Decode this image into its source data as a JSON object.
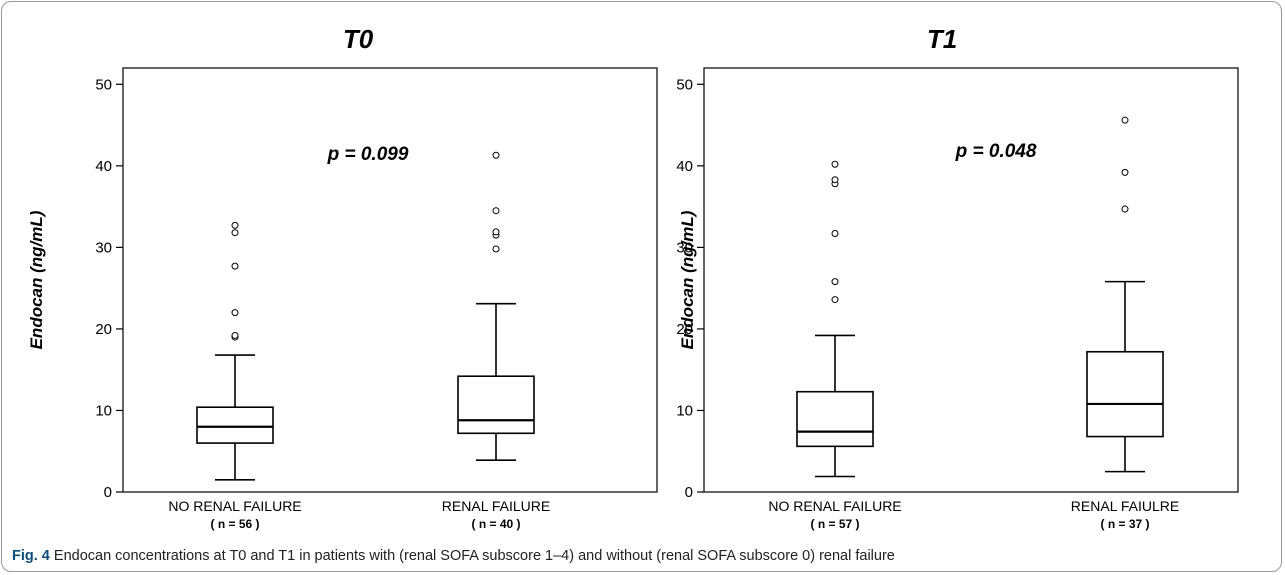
{
  "caption": {
    "label": "Fig. 4",
    "text": "Endocan concentrations at T0 and T1 in patients with (renal SOFA subscore 1–4) and without (renal SOFA subscore 0) renal failure"
  },
  "chart_data": [
    {
      "type": "box",
      "title": "T0",
      "ylabel": "Endocan (ng/mL)",
      "ylim": [
        0,
        52
      ],
      "yticks": [
        0,
        10,
        20,
        30,
        40,
        50
      ],
      "annotation": "p = 0.099",
      "groups": [
        {
          "label": "NO RENAL FAILURE",
          "n_label": "( n = 56 )",
          "whisker_low": 1.5,
          "q1": 6.0,
          "median": 8.0,
          "q3": 10.4,
          "whisker_high": 16.8,
          "outliers": [
            19.0,
            19.2,
            22.0,
            27.7,
            31.8,
            32.7
          ]
        },
        {
          "label": "RENAL FAILURE",
          "n_label": "( n = 40 )",
          "whisker_low": 3.9,
          "q1": 7.2,
          "median": 8.8,
          "q3": 14.2,
          "whisker_high": 23.1,
          "outliers": [
            29.8,
            31.5,
            31.9,
            34.5,
            41.3
          ]
        }
      ]
    },
    {
      "type": "box",
      "title": "T1",
      "ylabel": "Endocan (ng/mL)",
      "ylim": [
        0,
        52
      ],
      "yticks": [
        0,
        10,
        20,
        30,
        40,
        50
      ],
      "annotation": "p = 0.048",
      "groups": [
        {
          "label": "NO RENAL FAILURE",
          "n_label": "( n = 57 )",
          "whisker_low": 1.9,
          "q1": 5.6,
          "median": 7.4,
          "q3": 12.3,
          "whisker_high": 19.2,
          "outliers": [
            23.6,
            25.8,
            31.7,
            37.8,
            38.3,
            40.2
          ]
        },
        {
          "label": "RENAL FAIULRE",
          "n_label": "( n = 37 )",
          "whisker_low": 2.5,
          "q1": 6.8,
          "median": 10.8,
          "q3": 17.2,
          "whisker_high": 25.8,
          "outliers": [
            34.7,
            39.2,
            45.6
          ]
        }
      ]
    }
  ]
}
